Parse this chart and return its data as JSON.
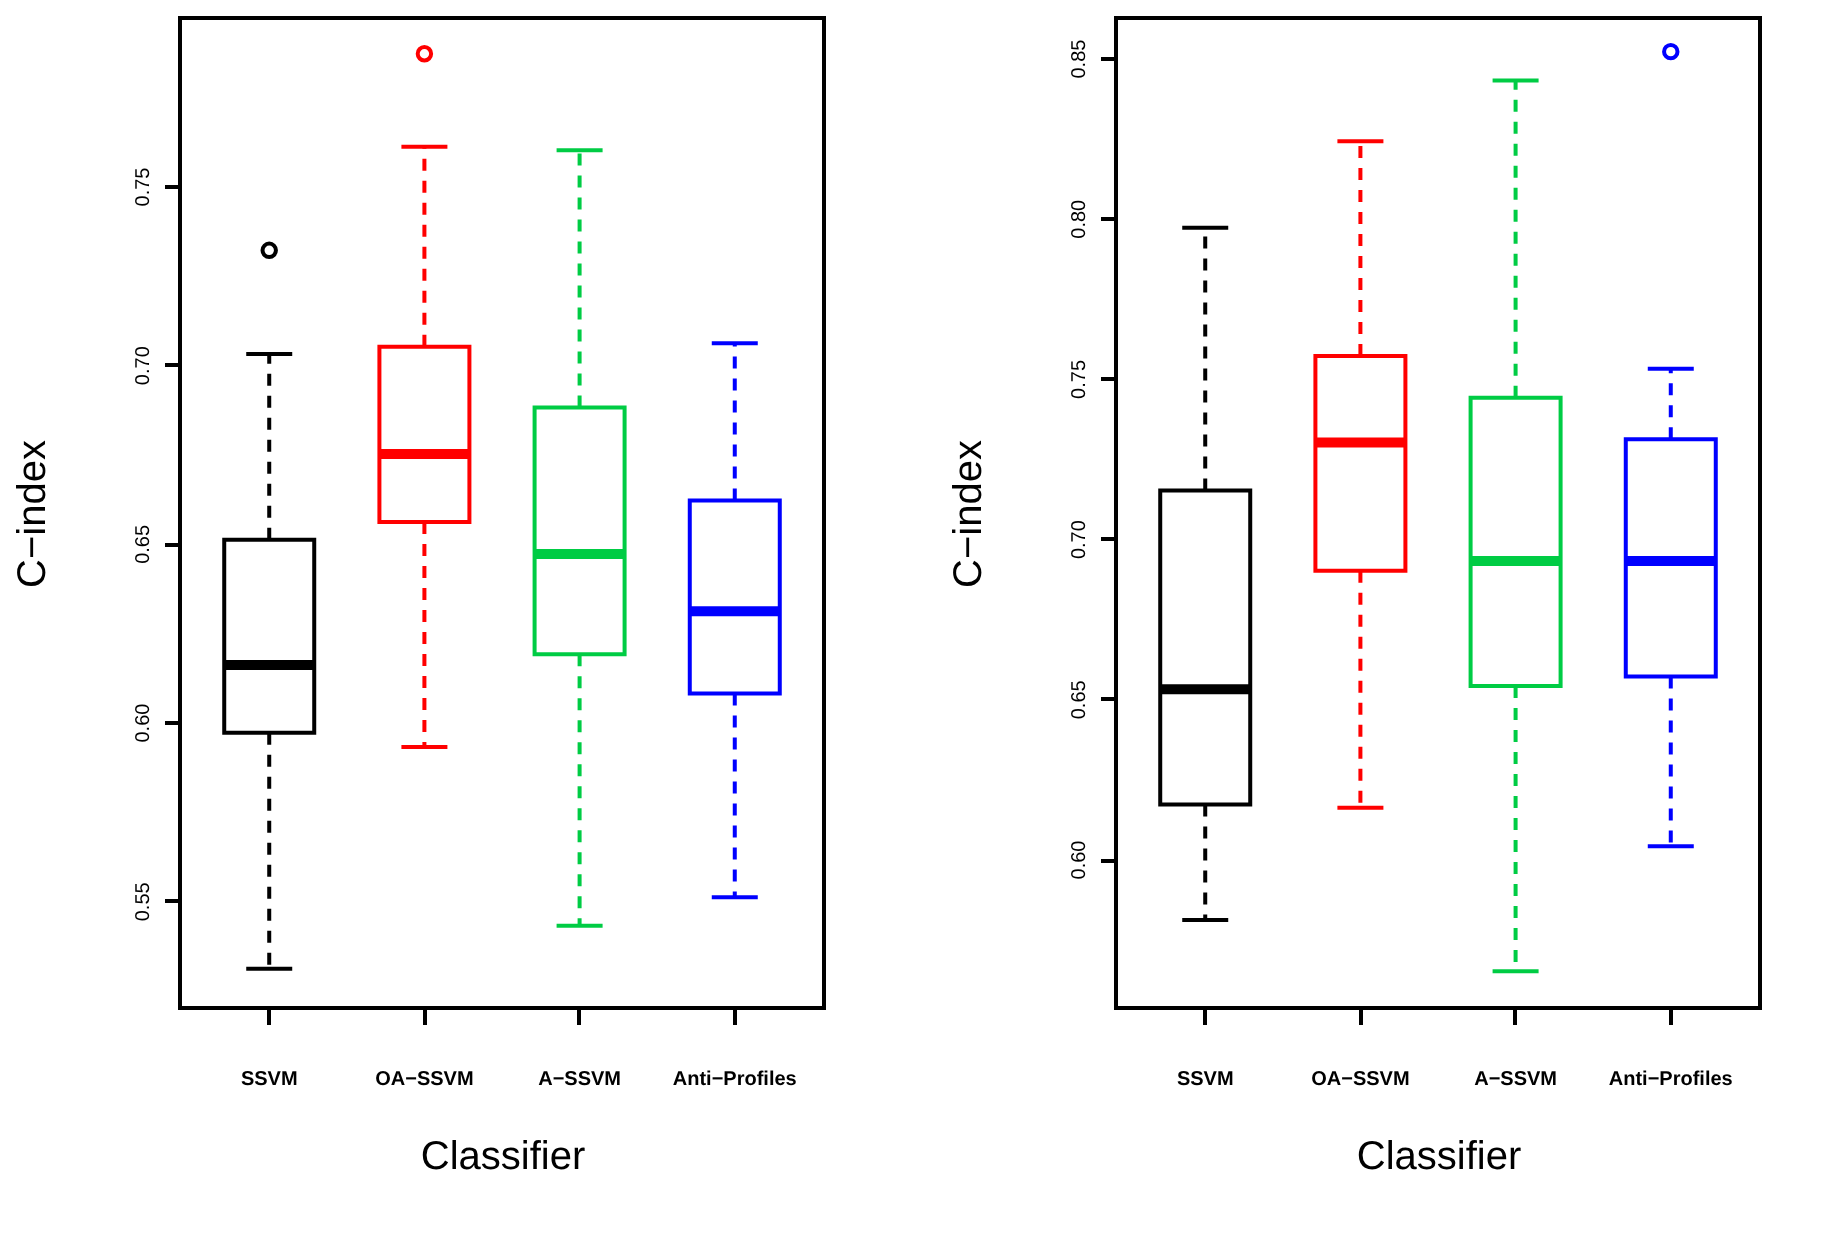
{
  "chart_data": [
    {
      "type": "box",
      "xlabel": "Classifier",
      "ylabel": "C−index",
      "categories": [
        "SSVM",
        "OA−SSVM",
        "A−SSVM",
        "Anti−Profiles"
      ],
      "colors": [
        "#000000",
        "#ff0000",
        "#00cc44",
        "#0000ff"
      ],
      "boxes": [
        {
          "low": 0.531,
          "q1": 0.597,
          "median": 0.616,
          "q3": 0.651,
          "high": 0.703,
          "outliers": [
            0.732
          ]
        },
        {
          "low": 0.593,
          "q1": 0.656,
          "median": 0.675,
          "q3": 0.705,
          "high": 0.761,
          "outliers": [
            0.787
          ]
        },
        {
          "low": 0.543,
          "q1": 0.619,
          "median": 0.647,
          "q3": 0.688,
          "high": 0.76
        },
        {
          "low": 0.551,
          "q1": 0.608,
          "median": 0.631,
          "q3": 0.662,
          "high": 0.706
        }
      ],
      "ylim": [
        0.52,
        0.797
      ],
      "yticks": [
        {
          "value": 0.55,
          "label": "0.55"
        },
        {
          "value": 0.6,
          "label": "0.60"
        },
        {
          "value": 0.65,
          "label": "0.65"
        },
        {
          "value": 0.7,
          "label": "0.70"
        },
        {
          "value": 0.75,
          "label": "0.75"
        }
      ],
      "grid": false
    },
    {
      "type": "box",
      "xlabel": "Classifier",
      "ylabel": "C−index",
      "categories": [
        "SSVM",
        "OA−SSVM",
        "A−SSVM",
        "Anti−Profiles"
      ],
      "colors": [
        "#000000",
        "#ff0000",
        "#00cc44",
        "#0000ff"
      ],
      "boxes": [
        {
          "low": 0.581,
          "q1": 0.617,
          "median": 0.653,
          "q3": 0.715,
          "high": 0.797
        },
        {
          "low": 0.616,
          "q1": 0.69,
          "median": 0.73,
          "q3": 0.757,
          "high": 0.824
        },
        {
          "low": 0.565,
          "q1": 0.654,
          "median": 0.693,
          "q3": 0.744,
          "high": 0.843
        },
        {
          "low": 0.604,
          "q1": 0.657,
          "median": 0.693,
          "q3": 0.731,
          "high": 0.753,
          "outliers": [
            0.852
          ]
        }
      ],
      "ylim": [
        0.5535,
        0.8625
      ],
      "yticks": [
        {
          "value": 0.6,
          "label": "0.60"
        },
        {
          "value": 0.65,
          "label": "0.65"
        },
        {
          "value": 0.7,
          "label": "0.70"
        },
        {
          "value": 0.75,
          "label": "0.75"
        },
        {
          "value": 0.8,
          "label": "0.80"
        },
        {
          "value": 0.85,
          "label": "0.85"
        }
      ],
      "grid": false
    }
  ]
}
